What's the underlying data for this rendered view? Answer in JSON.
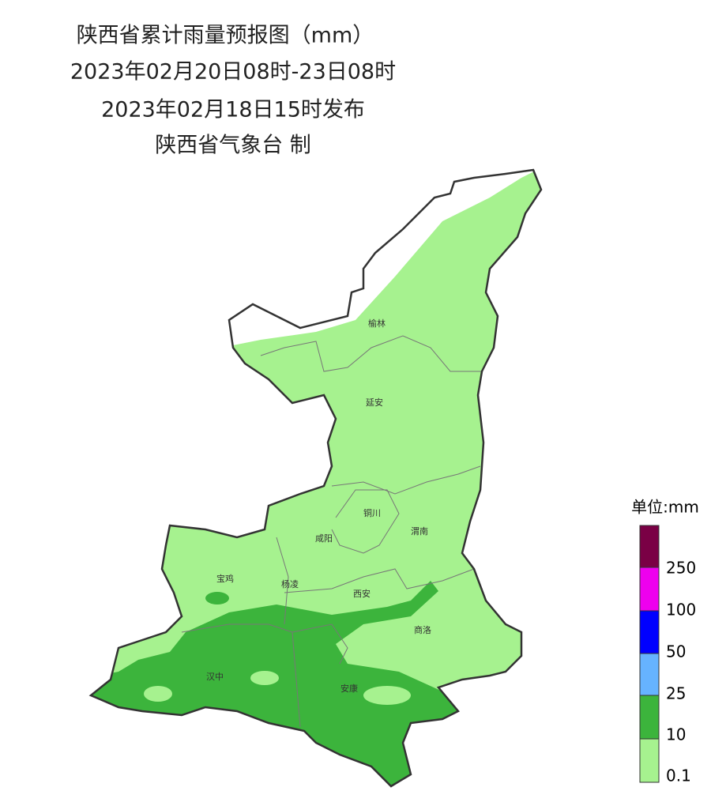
{
  "header": {
    "title": "陕西省累计雨量预报图（mm）",
    "period": "2023年02月20日08时-23日08时",
    "issued": "2023年02月18日15时发布",
    "issuer": "陕西省气象台 制"
  },
  "cities": [
    "榆林",
    "延安",
    "铜川",
    "咸阳",
    "渭南",
    "宝鸡",
    "杨凌",
    "西安",
    "商洛",
    "汉中",
    "安康"
  ],
  "legend": {
    "unit": "单位:mm",
    "labels": [
      "250",
      "100",
      "50",
      "25",
      "10",
      "0.1"
    ]
  }
}
